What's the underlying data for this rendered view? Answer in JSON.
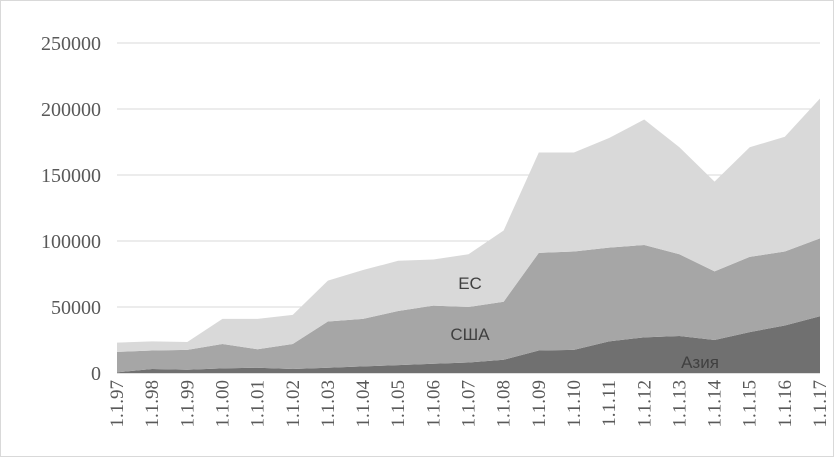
{
  "chart_data": {
    "type": "stacked_area",
    "categories": [
      "1.1.97",
      "1.1.98",
      "1.1.99",
      "1.1.00",
      "1.1.01",
      "1.1.02",
      "1.1.03",
      "1.1.04",
      "1.1.05",
      "1.1.06",
      "1.1.07",
      "1.1.08",
      "1.1.09",
      "1.1.10",
      "1.1.11",
      "1.1.12",
      "1.1.13",
      "1.1.14",
      "1.1.15",
      "1.1.16",
      "1.1.17"
    ],
    "series": [
      {
        "name": "Азия",
        "color": "#707070",
        "values": [
          500,
          3000,
          2500,
          3500,
          4000,
          3000,
          4000,
          5000,
          6000,
          7000,
          8000,
          10000,
          17000,
          17500,
          24000,
          27000,
          28000,
          25000,
          31000,
          36000,
          43000
        ]
      },
      {
        "name": "США",
        "color": "#a6a6a6",
        "values": [
          15500,
          14000,
          15000,
          18500,
          14000,
          19000,
          35000,
          36000,
          41000,
          44000,
          42000,
          44000,
          74000,
          74500,
          71000,
          70000,
          62000,
          52000,
          57000,
          56000,
          59000
        ]
      },
      {
        "name": "ЕС",
        "color": "#d9d9d9",
        "values": [
          7000,
          7000,
          6000,
          19000,
          23000,
          22000,
          31000,
          37000,
          38000,
          35000,
          40000,
          54000,
          76000,
          75000,
          83000,
          95000,
          81000,
          68000,
          83000,
          87000,
          106000
        ]
      }
    ],
    "ylim": [
      0,
      250000
    ],
    "yticks": [
      0,
      50000,
      100000,
      150000,
      200000,
      250000
    ],
    "grid": true
  }
}
